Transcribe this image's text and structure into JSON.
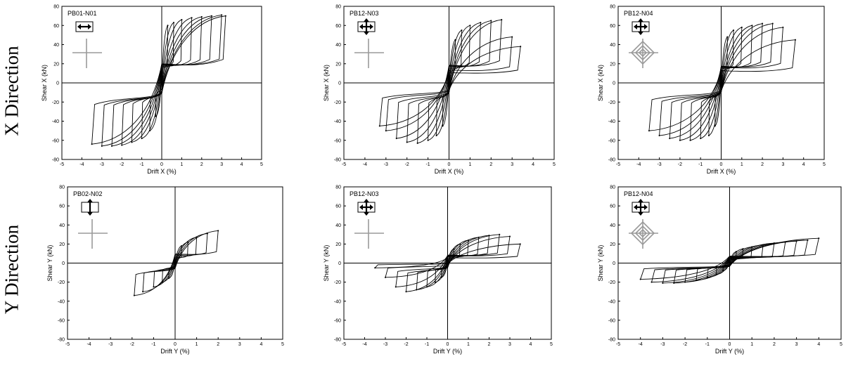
{
  "rows": [
    "X Direction",
    "Y Direction"
  ],
  "chart_data": [
    {
      "type": "line",
      "title": "PB01-N01",
      "panel_label": "PB01-N01",
      "direction": "x",
      "icon": "double-arrow-horizontal-icon",
      "xlabel": "Drift X (%)",
      "ylabel": "Shear X (kN)",
      "xlim": [
        -5,
        5
      ],
      "ylim": [
        -80,
        80
      ],
      "xticks": [
        -5,
        -4,
        -3,
        -2,
        -1,
        0,
        1,
        2,
        3,
        4,
        5
      ],
      "yticks": [
        -80,
        -60,
        -40,
        -20,
        0,
        20,
        40,
        60,
        80
      ],
      "series": [
        {
          "values": [
            {
              "drift": 0.3,
              "shear": 60
            },
            {
              "drift": 0.6,
              "shear": 63
            },
            {
              "drift": 1.0,
              "shear": 66
            },
            {
              "drift": 1.5,
              "shear": 68
            },
            {
              "drift": 2.0,
              "shear": 69
            },
            {
              "drift": 2.5,
              "shear": 70
            },
            {
              "drift": 3.0,
              "shear": 71
            },
            {
              "drift": 3.2,
              "shear": 70
            },
            {
              "drift": -0.3,
              "shear": -35
            },
            {
              "drift": -0.6,
              "shear": -50
            },
            {
              "drift": -1.0,
              "shear": -58
            },
            {
              "drift": -1.5,
              "shear": -62
            },
            {
              "drift": -2.0,
              "shear": -65
            },
            {
              "drift": -2.5,
              "shear": -66
            },
            {
              "drift": -3.0,
              "shear": -66
            },
            {
              "drift": -3.5,
              "shear": -64
            }
          ]
        }
      ],
      "grid": false
    },
    {
      "type": "line",
      "title": "PB12-N03",
      "panel_label": "PB12-N03",
      "direction": "x",
      "icon": "quad-arrow-icon",
      "xlabel": "Drift X (%)",
      "ylabel": "Shear X (kN)",
      "xlim": [
        -5,
        5
      ],
      "ylim": [
        -80,
        80
      ],
      "xticks": [
        -5,
        -4,
        -3,
        -2,
        -1,
        0,
        1,
        2,
        3,
        4,
        5
      ],
      "yticks": [
        -80,
        -60,
        -40,
        -20,
        0,
        20,
        40,
        60,
        80
      ],
      "series": [
        {
          "values": [
            {
              "drift": 0.3,
              "shear": 45
            },
            {
              "drift": 0.6,
              "shear": 55
            },
            {
              "drift": 1.0,
              "shear": 60
            },
            {
              "drift": 1.5,
              "shear": 63
            },
            {
              "drift": 2.0,
              "shear": 65
            },
            {
              "drift": 2.5,
              "shear": 66
            },
            {
              "drift": 3.0,
              "shear": 48
            },
            {
              "drift": 3.4,
              "shear": 38
            },
            {
              "drift": -0.3,
              "shear": -45
            },
            {
              "drift": -0.6,
              "shear": -55
            },
            {
              "drift": -1.0,
              "shear": -60
            },
            {
              "drift": -1.5,
              "shear": -63
            },
            {
              "drift": -2.0,
              "shear": -62
            },
            {
              "drift": -2.5,
              "shear": -58
            },
            {
              "drift": -3.0,
              "shear": -50
            },
            {
              "drift": -3.3,
              "shear": -45
            }
          ]
        }
      ],
      "grid": false
    },
    {
      "type": "line",
      "title": "PB12-N04",
      "panel_label": "PB12-N04",
      "direction": "x",
      "icon": "quad-arrow-icon",
      "xlabel": "Drift X (%)",
      "ylabel": "Shear X (kN)",
      "xlim": [
        -5,
        5
      ],
      "ylim": [
        -80,
        80
      ],
      "xticks": [
        -5,
        -4,
        -3,
        -2,
        -1,
        0,
        1,
        2,
        3,
        4,
        5
      ],
      "yticks": [
        -80,
        -60,
        -40,
        -20,
        0,
        20,
        40,
        60,
        80
      ],
      "series": [
        {
          "values": [
            {
              "drift": 0.3,
              "shear": 48
            },
            {
              "drift": 0.6,
              "shear": 55
            },
            {
              "drift": 1.0,
              "shear": 58
            },
            {
              "drift": 1.5,
              "shear": 60
            },
            {
              "drift": 2.0,
              "shear": 62
            },
            {
              "drift": 2.5,
              "shear": 62
            },
            {
              "drift": 3.0,
              "shear": 58
            },
            {
              "drift": 3.6,
              "shear": 45
            },
            {
              "drift": -0.3,
              "shear": -45
            },
            {
              "drift": -0.6,
              "shear": -55
            },
            {
              "drift": -1.0,
              "shear": -58
            },
            {
              "drift": -1.5,
              "shear": -60
            },
            {
              "drift": -2.0,
              "shear": -60
            },
            {
              "drift": -2.5,
              "shear": -58
            },
            {
              "drift": -3.0,
              "shear": -55
            },
            {
              "drift": -3.5,
              "shear": -50
            }
          ]
        }
      ],
      "grid": false
    },
    {
      "type": "line",
      "title": "PB02-N02",
      "panel_label": "PB02-N02",
      "direction": "y",
      "icon": "double-arrow-vertical-icon",
      "xlabel": "Drift Y (%)",
      "ylabel": "Shear Y (kN)",
      "xlim": [
        -5,
        5
      ],
      "ylim": [
        -80,
        80
      ],
      "xticks": [
        -5,
        -4,
        -3,
        -2,
        -1,
        0,
        1,
        2,
        3,
        4,
        5
      ],
      "yticks": [
        -80,
        -60,
        -40,
        -20,
        0,
        20,
        40,
        60,
        80
      ],
      "series": [
        {
          "values": [
            {
              "drift": 0.3,
              "shear": 18
            },
            {
              "drift": 0.6,
              "shear": 22
            },
            {
              "drift": 1.0,
              "shear": 27
            },
            {
              "drift": 1.5,
              "shear": 31
            },
            {
              "drift": 2.0,
              "shear": 34
            },
            {
              "drift": -0.3,
              "shear": -16
            },
            {
              "drift": -0.6,
              "shear": -20
            },
            {
              "drift": -1.0,
              "shear": -25
            },
            {
              "drift": -1.5,
              "shear": -30
            },
            {
              "drift": -1.9,
              "shear": -34
            }
          ]
        }
      ],
      "grid": false
    },
    {
      "type": "line",
      "title": "PB12-N03",
      "panel_label": "PB12-N03",
      "direction": "y",
      "icon": "quad-arrow-icon",
      "xlabel": "Drift Y (%)",
      "ylabel": "Shear Y (kN)",
      "xlim": [
        -5,
        5
      ],
      "ylim": [
        -80,
        80
      ],
      "xticks": [
        -5,
        -4,
        -3,
        -2,
        -1,
        0,
        1,
        2,
        3,
        4,
        5
      ],
      "yticks": [
        -80,
        -60,
        -40,
        -20,
        0,
        20,
        40,
        60,
        80
      ],
      "series": [
        {
          "values": [
            {
              "drift": 0.3,
              "shear": 15
            },
            {
              "drift": 0.6,
              "shear": 20
            },
            {
              "drift": 1.0,
              "shear": 24
            },
            {
              "drift": 1.5,
              "shear": 27
            },
            {
              "drift": 2.0,
              "shear": 29
            },
            {
              "drift": 2.5,
              "shear": 30
            },
            {
              "drift": 3.0,
              "shear": 28
            },
            {
              "drift": 3.5,
              "shear": 20
            },
            {
              "drift": -0.3,
              "shear": -15
            },
            {
              "drift": -0.6,
              "shear": -20
            },
            {
              "drift": -1.0,
              "shear": -25
            },
            {
              "drift": -1.5,
              "shear": -28
            },
            {
              "drift": -2.0,
              "shear": -30
            },
            {
              "drift": -2.5,
              "shear": -25
            },
            {
              "drift": -3.0,
              "shear": -15
            },
            {
              "drift": -3.5,
              "shear": -5
            }
          ]
        }
      ],
      "grid": false
    },
    {
      "type": "line",
      "title": "PB12-N04",
      "panel_label": "PB12-N04",
      "direction": "y",
      "icon": "quad-arrow-icon",
      "xlabel": "Drift Y (%)",
      "ylabel": "Shear Y (kN)",
      "xlim": [
        -5,
        5
      ],
      "ylim": [
        -80,
        80
      ],
      "xticks": [
        -5,
        -4,
        -3,
        -2,
        -1,
        0,
        1,
        2,
        3,
        4,
        5
      ],
      "yticks": [
        -80,
        -60,
        -40,
        -20,
        0,
        20,
        40,
        60,
        80
      ],
      "series": [
        {
          "values": [
            {
              "drift": 0.3,
              "shear": 12
            },
            {
              "drift": 0.6,
              "shear": 15
            },
            {
              "drift": 1.0,
              "shear": 17
            },
            {
              "drift": 1.5,
              "shear": 19
            },
            {
              "drift": 2.0,
              "shear": 21
            },
            {
              "drift": 2.5,
              "shear": 22
            },
            {
              "drift": 3.0,
              "shear": 23
            },
            {
              "drift": 3.5,
              "shear": 24
            },
            {
              "drift": 4.0,
              "shear": 26
            },
            {
              "drift": -0.3,
              "shear": -8
            },
            {
              "drift": -0.6,
              "shear": -12
            },
            {
              "drift": -1.0,
              "shear": -15
            },
            {
              "drift": -1.5,
              "shear": -18
            },
            {
              "drift": -2.0,
              "shear": -20
            },
            {
              "drift": -2.5,
              "shear": -21
            },
            {
              "drift": -3.0,
              "shear": -21
            },
            {
              "drift": -3.5,
              "shear": -20
            },
            {
              "drift": -4.0,
              "shear": -17
            }
          ]
        }
      ],
      "grid": false
    }
  ]
}
